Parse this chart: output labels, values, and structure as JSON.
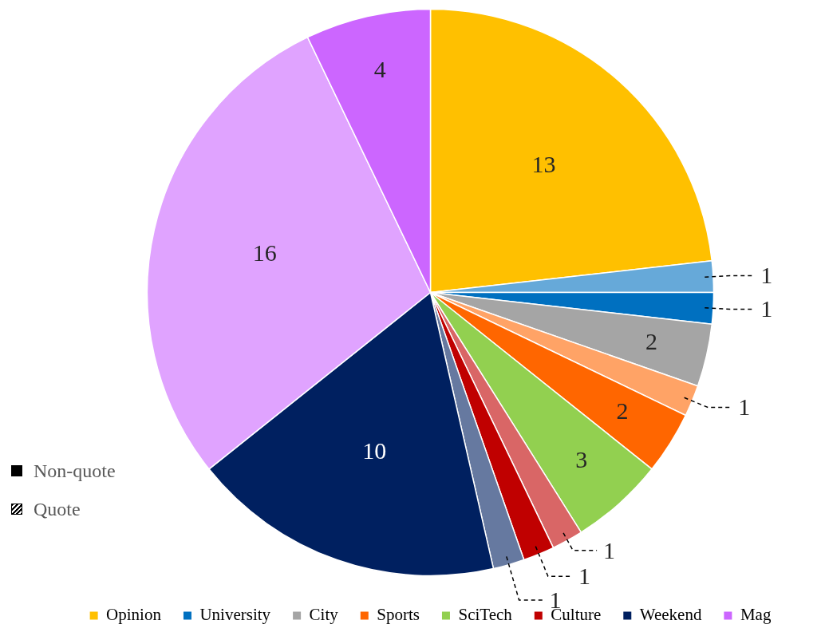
{
  "chart_data": {
    "type": "pie",
    "categories": [
      "Opinion",
      null,
      "University",
      "City",
      null,
      "Sports",
      "SciTech",
      null,
      "Culture",
      null,
      "Weekend",
      null,
      "Mag"
    ],
    "values": [
      13,
      1,
      1,
      2,
      1,
      2,
      3,
      1,
      1,
      1,
      10,
      16,
      4
    ],
    "colors": [
      "#ffc000",
      "#66a9d9",
      "#0070c0",
      "#a5a5a5",
      "#ffa366",
      "#ff6600",
      "#92d050",
      "#d96666",
      "#c00000",
      "#6679a0",
      "#002060",
      "#e0a3ff",
      "#cc66ff"
    ],
    "annotations": [
      "Non-quote",
      "Quote"
    ],
    "data_labels": true,
    "legend": "bottom"
  }
}
